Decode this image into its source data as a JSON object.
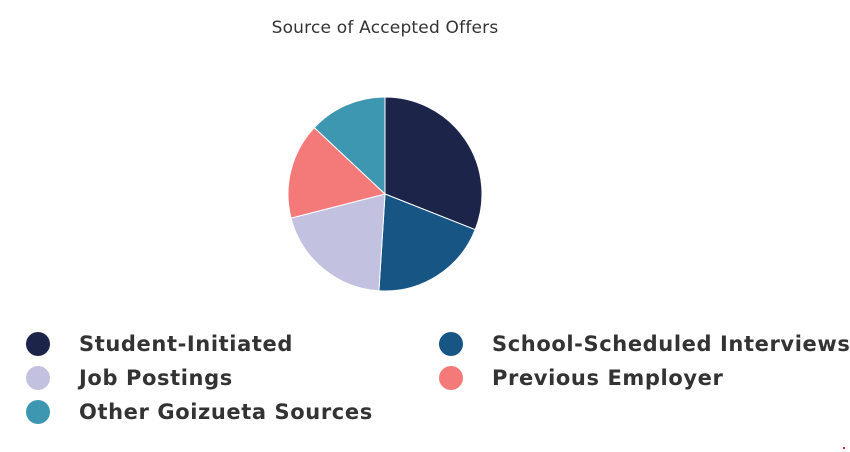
{
  "colors": {
    "text": "#333333",
    "background": "#ffffff",
    "slice_border": "#ffffff"
  },
  "chart_data": {
    "type": "pie",
    "title": "Source of Accepted Offers",
    "legend_position": "bottom",
    "slices": [
      {
        "label": "Student-Initiated",
        "value": 31,
        "color": "#1d2449"
      },
      {
        "label": "School-Scheduled Interviews",
        "value": 20,
        "color": "#175585"
      },
      {
        "label": "Job Postings",
        "value": 20,
        "color": "#c2c1e0"
      },
      {
        "label": "Previous Employer",
        "value": 16,
        "color": "#f47a7a"
      },
      {
        "label": "Other Goizueta Sources",
        "value": 13,
        "color": "#3d97b0"
      }
    ]
  }
}
